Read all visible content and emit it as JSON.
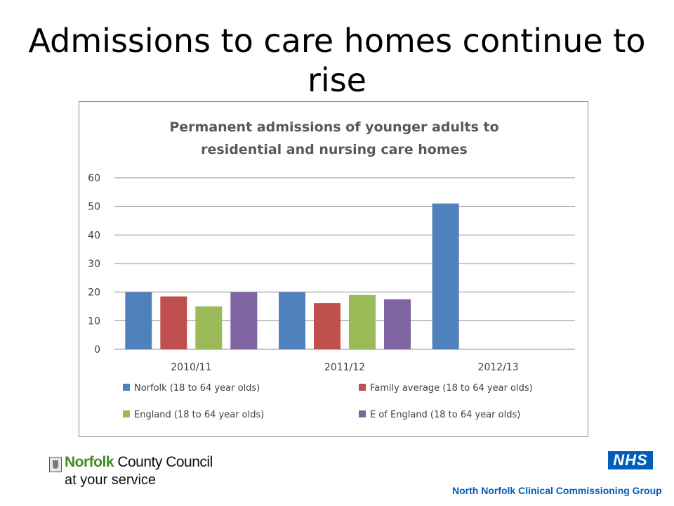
{
  "slide": {
    "title_line1": "Admissions to care homes continue to",
    "title_line2": "rise"
  },
  "chart_data": {
    "type": "bar",
    "title": [
      "Permanent admissions of younger adults to",
      "residential and nursing care homes"
    ],
    "categories": [
      "2010/11",
      "2011/12",
      "2012/13"
    ],
    "series": [
      {
        "name": "Norfolk (18 to 64 year olds)",
        "color": "#4f81bd",
        "values": [
          20,
          20,
          51
        ]
      },
      {
        "name": "Family average (18 to 64 year olds)",
        "color": "#c0504d",
        "values": [
          18.5,
          16.2,
          null
        ]
      },
      {
        "name": "England (18 to 64 year olds)",
        "color": "#9bbb59",
        "values": [
          15,
          19,
          null
        ]
      },
      {
        "name": "E of England (18 to 64 year olds)",
        "color": "#8064a2",
        "values": [
          20,
          17.5,
          null
        ]
      }
    ],
    "yticks": [
      0,
      10,
      20,
      30,
      40,
      50,
      60
    ],
    "ylim": [
      0,
      60
    ],
    "grid": true,
    "legend_placement": "bottom"
  },
  "footer": {
    "council_norfolk": "Norfolk",
    "council_rest": " County Council",
    "council_tagline": "at your service",
    "nhs_badge": "NHS",
    "ccg_name": "North Norfolk Clinical Commissioning Group"
  },
  "colors": {
    "grid": "#8c8c8c",
    "nhs_blue": "#005eb8",
    "norfolk_green": "#3e8e1f"
  }
}
